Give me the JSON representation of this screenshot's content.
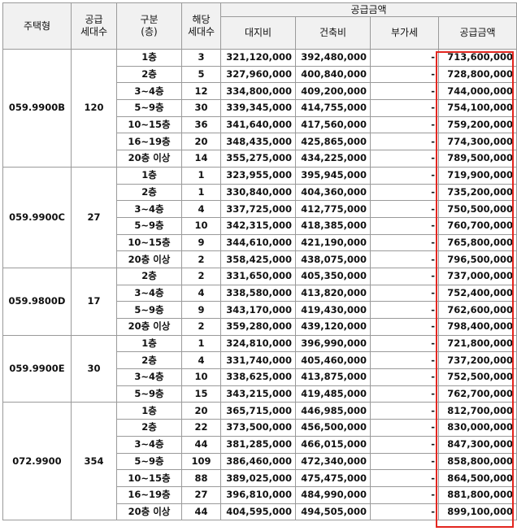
{
  "headers": {
    "type": "주택형",
    "households": "공급\n세대수",
    "category": "구분\n(층)",
    "applicable": "해당\n세대수",
    "supply_amount": "공급금액",
    "land": "대지비",
    "building": "건축비",
    "vat": "부가세",
    "total": "공급금액"
  },
  "groups": [
    {
      "type": "059.9900B",
      "households": "120",
      "rows": [
        {
          "floor": "1층",
          "count": "3",
          "land": "321,120,000",
          "building": "392,480,000",
          "vat": "-",
          "total": "713,600,000"
        },
        {
          "floor": "2층",
          "count": "5",
          "land": "327,960,000",
          "building": "400,840,000",
          "vat": "-",
          "total": "728,800,000"
        },
        {
          "floor": "3~4층",
          "count": "12",
          "land": "334,800,000",
          "building": "409,200,000",
          "vat": "-",
          "total": "744,000,000"
        },
        {
          "floor": "5~9층",
          "count": "30",
          "land": "339,345,000",
          "building": "414,755,000",
          "vat": "-",
          "total": "754,100,000"
        },
        {
          "floor": "10~15층",
          "count": "36",
          "land": "341,640,000",
          "building": "417,560,000",
          "vat": "-",
          "total": "759,200,000"
        },
        {
          "floor": "16~19층",
          "count": "20",
          "land": "348,435,000",
          "building": "425,865,000",
          "vat": "-",
          "total": "774,300,000"
        },
        {
          "floor": "20층 이상",
          "count": "14",
          "land": "355,275,000",
          "building": "434,225,000",
          "vat": "-",
          "total": "789,500,000"
        }
      ]
    },
    {
      "type": "059.9900C",
      "households": "27",
      "rows": [
        {
          "floor": "1층",
          "count": "1",
          "land": "323,955,000",
          "building": "395,945,000",
          "vat": "-",
          "total": "719,900,000"
        },
        {
          "floor": "2층",
          "count": "1",
          "land": "330,840,000",
          "building": "404,360,000",
          "vat": "-",
          "total": "735,200,000"
        },
        {
          "floor": "3~4층",
          "count": "4",
          "land": "337,725,000",
          "building": "412,775,000",
          "vat": "-",
          "total": "750,500,000"
        },
        {
          "floor": "5~9층",
          "count": "10",
          "land": "342,315,000",
          "building": "418,385,000",
          "vat": "-",
          "total": "760,700,000"
        },
        {
          "floor": "10~15층",
          "count": "9",
          "land": "344,610,000",
          "building": "421,190,000",
          "vat": "-",
          "total": "765,800,000"
        },
        {
          "floor": "20층 이상",
          "count": "2",
          "land": "358,425,000",
          "building": "438,075,000",
          "vat": "-",
          "total": "796,500,000"
        }
      ]
    },
    {
      "type": "059.9800D",
      "households": "17",
      "rows": [
        {
          "floor": "2층",
          "count": "2",
          "land": "331,650,000",
          "building": "405,350,000",
          "vat": "-",
          "total": "737,000,000"
        },
        {
          "floor": "3~4층",
          "count": "4",
          "land": "338,580,000",
          "building": "413,820,000",
          "vat": "-",
          "total": "752,400,000"
        },
        {
          "floor": "5~9층",
          "count": "9",
          "land": "343,170,000",
          "building": "419,430,000",
          "vat": "-",
          "total": "762,600,000"
        },
        {
          "floor": "20층 이상",
          "count": "2",
          "land": "359,280,000",
          "building": "439,120,000",
          "vat": "-",
          "total": "798,400,000"
        }
      ]
    },
    {
      "type": "059.9900E",
      "households": "30",
      "rows": [
        {
          "floor": "1층",
          "count": "1",
          "land": "324,810,000",
          "building": "396,990,000",
          "vat": "-",
          "total": "721,800,000"
        },
        {
          "floor": "2층",
          "count": "4",
          "land": "331,740,000",
          "building": "405,460,000",
          "vat": "-",
          "total": "737,200,000"
        },
        {
          "floor": "3~4층",
          "count": "10",
          "land": "338,625,000",
          "building": "413,875,000",
          "vat": "-",
          "total": "752,500,000"
        },
        {
          "floor": "5~9층",
          "count": "15",
          "land": "343,215,000",
          "building": "419,485,000",
          "vat": "-",
          "total": "762,700,000"
        }
      ]
    },
    {
      "type": "072.9900",
      "households": "354",
      "rows": [
        {
          "floor": "1층",
          "count": "20",
          "land": "365,715,000",
          "building": "446,985,000",
          "vat": "-",
          "total": "812,700,000"
        },
        {
          "floor": "2층",
          "count": "22",
          "land": "373,500,000",
          "building": "456,500,000",
          "vat": "-",
          "total": "830,000,000"
        },
        {
          "floor": "3~4층",
          "count": "44",
          "land": "381,285,000",
          "building": "466,015,000",
          "vat": "-",
          "total": "847,300,000"
        },
        {
          "floor": "5~9층",
          "count": "109",
          "land": "386,460,000",
          "building": "472,340,000",
          "vat": "-",
          "total": "858,800,000"
        },
        {
          "floor": "10~15층",
          "count": "88",
          "land": "389,025,000",
          "building": "475,475,000",
          "vat": "-",
          "total": "864,500,000"
        },
        {
          "floor": "16~19층",
          "count": "27",
          "land": "396,810,000",
          "building": "484,990,000",
          "vat": "-",
          "total": "881,800,000"
        },
        {
          "floor": "20층 이상",
          "count": "44",
          "land": "404,595,000",
          "building": "494,505,000",
          "vat": "-",
          "total": "899,100,000"
        }
      ]
    }
  ],
  "highlight_color": "#e3261f"
}
